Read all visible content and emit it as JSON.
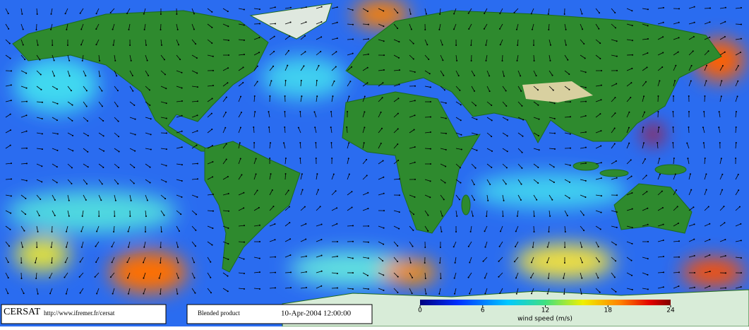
{
  "footer": {
    "logo": "CERSAT",
    "url": "http://www.ifremer.fr/cersat",
    "product": "Blended product",
    "timestamp": "10-Apr-2004 12:00:00"
  },
  "colorbar": {
    "label": "wind speed (m/s)",
    "ticks": [
      0,
      6,
      12,
      18,
      24
    ]
  }
}
